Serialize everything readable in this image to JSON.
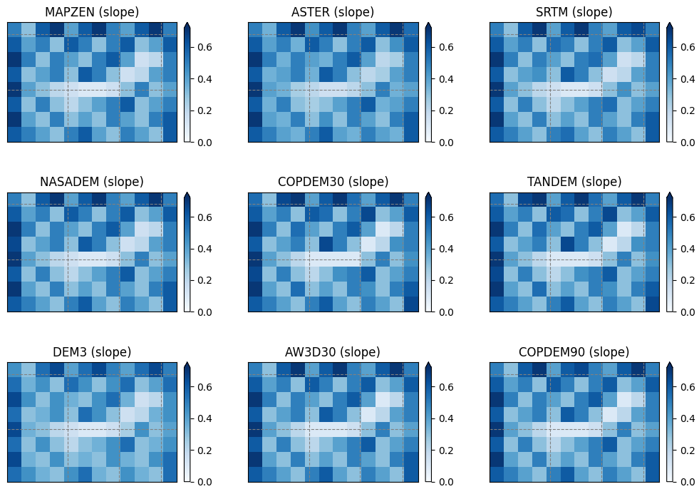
{
  "chart_data": [
    {
      "type": "heatmap",
      "title": "MAPZEN (slope)",
      "color": "Blues",
      "grid": true,
      "tick_labels": false,
      "xlim": [
        0,
        12
      ],
      "ylim": [
        0,
        8
      ],
      "xticks": [
        4.3,
        7.9,
        10.9
      ],
      "yticks": [
        3.5,
        7.2
      ],
      "colorbar_range": [
        0,
        0.72
      ],
      "colorbar_ticks": [
        {
          "value": 0,
          "label": "0.0"
        },
        0.2,
        0.4,
        0.6
      ],
      "cells": [
        [
          0.5,
          0.3,
          0.6,
          0.7,
          0.4,
          0.6,
          0.7,
          0.5,
          0.4,
          0.6,
          0.7,
          0.5
        ],
        [
          0.6,
          0.4,
          0.5,
          0.3,
          0.6,
          0.5,
          0.3,
          0.5,
          0.6,
          0.3,
          0.4,
          0.6
        ],
        [
          0.7,
          0.5,
          0.3,
          0.5,
          0.4,
          0.3,
          0.5,
          0.6,
          0.4,
          0.15,
          0.2,
          0.5
        ],
        [
          0.6,
          0.3,
          0.4,
          0.5,
          0.3,
          0.6,
          0.5,
          0.3,
          0.15,
          0.2,
          0.4,
          0.5
        ],
        [
          0.7,
          0.4,
          0.3,
          0.2,
          0.15,
          0.1,
          0.1,
          0.15,
          0.3,
          0.5,
          0.3,
          0.4
        ],
        [
          0.6,
          0.3,
          0.5,
          0.3,
          0.2,
          0.3,
          0.4,
          0.5,
          0.6,
          0.3,
          0.4,
          0.5
        ],
        [
          0.7,
          0.4,
          0.3,
          0.5,
          0.3,
          0.4,
          0.3,
          0.5,
          0.4,
          0.3,
          0.5,
          0.6
        ],
        [
          0.6,
          0.5,
          0.4,
          0.3,
          0.5,
          0.6,
          0.4,
          0.3,
          0.5,
          0.4,
          0.3,
          0.6
        ]
      ]
    },
    {
      "type": "heatmap",
      "title": "ASTER (slope)",
      "color": "Blues",
      "grid": true,
      "tick_labels": false,
      "xlim": [
        0,
        12
      ],
      "ylim": [
        0,
        8
      ],
      "xticks": [
        4.3,
        7.9,
        10.9
      ],
      "yticks": [
        3.5,
        7.2
      ],
      "colorbar_range": [
        0,
        0.72
      ],
      "colorbar_ticks": [
        {
          "value": 0,
          "label": "0.0"
        },
        0.2,
        0.4,
        0.6
      ],
      "cells": [
        [
          0.5,
          0.35,
          0.6,
          0.7,
          0.45,
          0.6,
          0.7,
          0.5,
          0.4,
          0.6,
          0.7,
          0.55
        ],
        [
          0.6,
          0.4,
          0.5,
          0.35,
          0.6,
          0.5,
          0.3,
          0.5,
          0.6,
          0.3,
          0.45,
          0.6
        ],
        [
          0.7,
          0.5,
          0.35,
          0.5,
          0.4,
          0.35,
          0.5,
          0.6,
          0.4,
          0.2,
          0.25,
          0.5
        ],
        [
          0.6,
          0.35,
          0.4,
          0.5,
          0.35,
          0.6,
          0.5,
          0.3,
          0.2,
          0.25,
          0.4,
          0.5
        ],
        [
          0.7,
          0.4,
          0.35,
          0.25,
          0.2,
          0.15,
          0.15,
          0.2,
          0.3,
          0.5,
          0.35,
          0.4
        ],
        [
          0.6,
          0.35,
          0.5,
          0.3,
          0.25,
          0.3,
          0.4,
          0.5,
          0.6,
          0.35,
          0.4,
          0.5
        ],
        [
          0.7,
          0.4,
          0.35,
          0.5,
          0.3,
          0.45,
          0.3,
          0.5,
          0.4,
          0.3,
          0.5,
          0.6
        ],
        [
          0.6,
          0.5,
          0.4,
          0.35,
          0.5,
          0.6,
          0.4,
          0.35,
          0.5,
          0.4,
          0.35,
          0.6
        ]
      ]
    },
    {
      "type": "heatmap",
      "title": "SRTM (slope)",
      "color": "Blues",
      "grid": true,
      "tick_labels": false,
      "xlim": [
        0,
        12
      ],
      "ylim": [
        0,
        8
      ],
      "xticks": [
        4.3,
        7.9,
        10.9
      ],
      "yticks": [
        3.5,
        7.2
      ],
      "colorbar_range": [
        0,
        0.72
      ],
      "colorbar_ticks": [
        {
          "value": 0,
          "label": "0.0"
        },
        0.2,
        0.4,
        0.6
      ],
      "cells": [
        [
          0.5,
          0.3,
          0.6,
          0.7,
          0.4,
          0.6,
          0.7,
          0.5,
          0.4,
          0.6,
          0.65,
          0.5
        ],
        [
          0.6,
          0.4,
          0.5,
          0.3,
          0.55,
          0.5,
          0.3,
          0.5,
          0.6,
          0.3,
          0.4,
          0.6
        ],
        [
          0.7,
          0.5,
          0.3,
          0.5,
          0.4,
          0.3,
          0.5,
          0.55,
          0.4,
          0.15,
          0.2,
          0.5
        ],
        [
          0.6,
          0.3,
          0.4,
          0.45,
          0.3,
          0.6,
          0.5,
          0.3,
          0.15,
          0.2,
          0.4,
          0.5
        ],
        [
          0.7,
          0.4,
          0.3,
          0.2,
          0.15,
          0.1,
          0.1,
          0.15,
          0.3,
          0.45,
          0.3,
          0.4
        ],
        [
          0.6,
          0.3,
          0.5,
          0.3,
          0.2,
          0.3,
          0.4,
          0.5,
          0.55,
          0.3,
          0.4,
          0.5
        ],
        [
          0.7,
          0.4,
          0.3,
          0.5,
          0.3,
          0.4,
          0.3,
          0.5,
          0.4,
          0.3,
          0.5,
          0.6
        ],
        [
          0.6,
          0.5,
          0.4,
          0.3,
          0.5,
          0.55,
          0.4,
          0.3,
          0.5,
          0.4,
          0.3,
          0.6
        ]
      ]
    },
    {
      "type": "heatmap",
      "title": "NASADEM (slope)",
      "color": "Blues",
      "grid": true,
      "tick_labels": false,
      "xlim": [
        0,
        12
      ],
      "ylim": [
        0,
        8
      ],
      "xticks": [
        4.3,
        7.9,
        10.9
      ],
      "yticks": [
        3.5,
        7.2
      ],
      "colorbar_range": [
        0,
        0.72
      ],
      "colorbar_ticks": [
        {
          "value": 0,
          "label": "0.0"
        },
        0.2,
        0.4,
        0.6
      ],
      "cells": [
        [
          0.5,
          0.3,
          0.6,
          0.7,
          0.4,
          0.6,
          0.7,
          0.5,
          0.4,
          0.6,
          0.7,
          0.5
        ],
        [
          0.6,
          0.4,
          0.5,
          0.3,
          0.6,
          0.5,
          0.3,
          0.5,
          0.6,
          0.3,
          0.4,
          0.6
        ],
        [
          0.7,
          0.5,
          0.3,
          0.5,
          0.4,
          0.3,
          0.5,
          0.6,
          0.4,
          0.15,
          0.2,
          0.5
        ],
        [
          0.65,
          0.3,
          0.4,
          0.5,
          0.3,
          0.6,
          0.5,
          0.3,
          0.15,
          0.2,
          0.4,
          0.5
        ],
        [
          0.7,
          0.4,
          0.3,
          0.2,
          0.15,
          0.1,
          0.1,
          0.15,
          0.3,
          0.5,
          0.3,
          0.4
        ],
        [
          0.6,
          0.3,
          0.5,
          0.3,
          0.2,
          0.3,
          0.4,
          0.5,
          0.6,
          0.3,
          0.4,
          0.5
        ],
        [
          0.7,
          0.4,
          0.3,
          0.5,
          0.3,
          0.4,
          0.3,
          0.5,
          0.4,
          0.3,
          0.5,
          0.6
        ],
        [
          0.6,
          0.5,
          0.4,
          0.3,
          0.5,
          0.6,
          0.4,
          0.3,
          0.5,
          0.4,
          0.3,
          0.6
        ]
      ]
    },
    {
      "type": "heatmap",
      "title": "COPDEM30 (slope)",
      "color": "Blues",
      "grid": true,
      "tick_labels": false,
      "xlim": [
        0,
        12
      ],
      "ylim": [
        0,
        8
      ],
      "xticks": [
        4.3,
        7.9,
        10.9
      ],
      "yticks": [
        3.5,
        7.2
      ],
      "colorbar_range": [
        0,
        0.72
      ],
      "colorbar_ticks": [
        {
          "value": 0,
          "label": "0.0"
        },
        0.2,
        0.4,
        0.6
      ],
      "cells": [
        [
          0.55,
          0.3,
          0.65,
          0.7,
          0.4,
          0.6,
          0.7,
          0.55,
          0.4,
          0.6,
          0.7,
          0.5
        ],
        [
          0.6,
          0.4,
          0.5,
          0.3,
          0.6,
          0.55,
          0.3,
          0.5,
          0.65,
          0.3,
          0.4,
          0.6
        ],
        [
          0.7,
          0.5,
          0.3,
          0.55,
          0.4,
          0.3,
          0.5,
          0.6,
          0.4,
          0.1,
          0.2,
          0.5
        ],
        [
          0.6,
          0.3,
          0.4,
          0.5,
          0.3,
          0.65,
          0.5,
          0.3,
          0.1,
          0.2,
          0.45,
          0.5
        ],
        [
          0.7,
          0.4,
          0.3,
          0.2,
          0.1,
          0.1,
          0.1,
          0.1,
          0.3,
          0.5,
          0.3,
          0.45
        ],
        [
          0.65,
          0.3,
          0.5,
          0.3,
          0.2,
          0.3,
          0.45,
          0.5,
          0.6,
          0.3,
          0.4,
          0.5
        ],
        [
          0.7,
          0.4,
          0.3,
          0.55,
          0.3,
          0.4,
          0.3,
          0.5,
          0.45,
          0.3,
          0.5,
          0.6
        ],
        [
          0.6,
          0.5,
          0.4,
          0.3,
          0.5,
          0.6,
          0.4,
          0.3,
          0.5,
          0.4,
          0.3,
          0.65
        ]
      ]
    },
    {
      "type": "heatmap",
      "title": "TANDEM (slope)",
      "color": "Blues",
      "grid": true,
      "tick_labels": false,
      "xlim": [
        0,
        12
      ],
      "ylim": [
        0,
        8
      ],
      "xticks": [
        4.3,
        7.9,
        10.9
      ],
      "yticks": [
        3.5,
        7.2
      ],
      "colorbar_range": [
        0,
        0.72
      ],
      "colorbar_ticks": [
        {
          "value": 0,
          "label": "0.0"
        },
        0.2,
        0.4,
        0.6
      ],
      "cells": [
        [
          0.55,
          0.3,
          0.65,
          0.7,
          0.4,
          0.6,
          0.7,
          0.55,
          0.4,
          0.6,
          0.7,
          0.5
        ],
        [
          0.6,
          0.4,
          0.5,
          0.3,
          0.6,
          0.55,
          0.3,
          0.5,
          0.65,
          0.3,
          0.4,
          0.6
        ],
        [
          0.7,
          0.5,
          0.3,
          0.55,
          0.4,
          0.3,
          0.5,
          0.6,
          0.4,
          0.1,
          0.2,
          0.5
        ],
        [
          0.6,
          0.3,
          0.4,
          0.5,
          0.3,
          0.65,
          0.5,
          0.3,
          0.1,
          0.2,
          0.45,
          0.5
        ],
        [
          0.7,
          0.4,
          0.3,
          0.2,
          0.1,
          0.1,
          0.1,
          0.15,
          0.3,
          0.5,
          0.3,
          0.45
        ],
        [
          0.65,
          0.3,
          0.5,
          0.3,
          0.2,
          0.3,
          0.45,
          0.5,
          0.6,
          0.3,
          0.4,
          0.5
        ],
        [
          0.7,
          0.4,
          0.3,
          0.55,
          0.3,
          0.4,
          0.3,
          0.5,
          0.45,
          0.3,
          0.5,
          0.6
        ],
        [
          0.6,
          0.5,
          0.4,
          0.3,
          0.5,
          0.6,
          0.4,
          0.3,
          0.5,
          0.4,
          0.3,
          0.65
        ]
      ]
    },
    {
      "type": "heatmap",
      "title": "DEM3 (slope)",
      "color": "Blues",
      "grid": true,
      "tick_labels": false,
      "xlim": [
        0,
        12
      ],
      "ylim": [
        0,
        8
      ],
      "xticks": [
        4.3,
        7.9,
        10.9
      ],
      "yticks": [
        3.5,
        7.2
      ],
      "colorbar_range": [
        0,
        0.72
      ],
      "colorbar_ticks": [
        {
          "value": 0,
          "label": "0.0"
        },
        0.2,
        0.4,
        0.6
      ],
      "cells": [
        [
          0.45,
          0.3,
          0.55,
          0.65,
          0.4,
          0.55,
          0.65,
          0.5,
          0.4,
          0.55,
          0.65,
          0.5
        ],
        [
          0.55,
          0.35,
          0.45,
          0.3,
          0.55,
          0.45,
          0.3,
          0.45,
          0.55,
          0.3,
          0.4,
          0.55
        ],
        [
          0.65,
          0.45,
          0.3,
          0.45,
          0.35,
          0.3,
          0.45,
          0.55,
          0.35,
          0.15,
          0.2,
          0.45
        ],
        [
          0.55,
          0.3,
          0.35,
          0.45,
          0.3,
          0.55,
          0.45,
          0.3,
          0.15,
          0.2,
          0.35,
          0.45
        ],
        [
          0.65,
          0.35,
          0.3,
          0.2,
          0.15,
          0.1,
          0.1,
          0.15,
          0.25,
          0.45,
          0.3,
          0.4
        ],
        [
          0.55,
          0.3,
          0.45,
          0.3,
          0.2,
          0.3,
          0.35,
          0.45,
          0.55,
          0.3,
          0.35,
          0.45
        ],
        [
          0.65,
          0.35,
          0.3,
          0.45,
          0.3,
          0.35,
          0.3,
          0.45,
          0.35,
          0.3,
          0.45,
          0.55
        ],
        [
          0.55,
          0.45,
          0.35,
          0.3,
          0.45,
          0.55,
          0.35,
          0.3,
          0.45,
          0.35,
          0.3,
          0.55
        ]
      ]
    },
    {
      "type": "heatmap",
      "title": "AW3D30 (slope)",
      "color": "Blues",
      "grid": true,
      "tick_labels": false,
      "xlim": [
        0,
        12
      ],
      "ylim": [
        0,
        8
      ],
      "xticks": [
        4.3,
        7.9,
        10.9
      ],
      "yticks": [
        3.5,
        7.2
      ],
      "colorbar_range": [
        0,
        0.72
      ],
      "colorbar_ticks": [
        {
          "value": 0,
          "label": "0.0"
        },
        0.2,
        0.4,
        0.6
      ],
      "cells": [
        [
          0.5,
          0.3,
          0.6,
          0.7,
          0.4,
          0.6,
          0.7,
          0.5,
          0.4,
          0.6,
          0.7,
          0.5
        ],
        [
          0.6,
          0.4,
          0.5,
          0.3,
          0.6,
          0.5,
          0.3,
          0.5,
          0.6,
          0.3,
          0.4,
          0.6
        ],
        [
          0.7,
          0.5,
          0.3,
          0.5,
          0.4,
          0.3,
          0.5,
          0.6,
          0.4,
          0.1,
          0.2,
          0.5
        ],
        [
          0.6,
          0.3,
          0.4,
          0.5,
          0.3,
          0.6,
          0.5,
          0.3,
          0.1,
          0.2,
          0.4,
          0.5
        ],
        [
          0.7,
          0.4,
          0.3,
          0.2,
          0.1,
          0.1,
          0.1,
          0.15,
          0.3,
          0.5,
          0.3,
          0.4
        ],
        [
          0.6,
          0.3,
          0.5,
          0.3,
          0.2,
          0.3,
          0.4,
          0.5,
          0.6,
          0.3,
          0.4,
          0.5
        ],
        [
          0.7,
          0.4,
          0.3,
          0.5,
          0.3,
          0.4,
          0.3,
          0.5,
          0.4,
          0.3,
          0.5,
          0.6
        ],
        [
          0.6,
          0.5,
          0.4,
          0.3,
          0.5,
          0.6,
          0.4,
          0.3,
          0.5,
          0.4,
          0.3,
          0.6
        ]
      ]
    },
    {
      "type": "heatmap",
      "title": "COPDEM90 (slope)",
      "color": "Blues",
      "grid": true,
      "tick_labels": false,
      "xlim": [
        0,
        12
      ],
      "ylim": [
        0,
        8
      ],
      "xticks": [
        4.3,
        7.9,
        10.9
      ],
      "yticks": [
        3.5,
        7.2
      ],
      "colorbar_range": [
        0,
        0.72
      ],
      "colorbar_ticks": [
        {
          "value": 0,
          "label": "0.0"
        },
        0.2,
        0.4,
        0.6
      ],
      "cells": [
        [
          0.5,
          0.3,
          0.6,
          0.7,
          0.4,
          0.6,
          0.65,
          0.5,
          0.4,
          0.6,
          0.7,
          0.5
        ],
        [
          0.6,
          0.4,
          0.5,
          0.3,
          0.6,
          0.5,
          0.3,
          0.5,
          0.6,
          0.3,
          0.4,
          0.6
        ],
        [
          0.7,
          0.5,
          0.3,
          0.5,
          0.4,
          0.3,
          0.5,
          0.6,
          0.4,
          0.1,
          0.2,
          0.5
        ],
        [
          0.6,
          0.3,
          0.4,
          0.5,
          0.3,
          0.6,
          0.5,
          0.3,
          0.1,
          0.2,
          0.4,
          0.5
        ],
        [
          0.7,
          0.4,
          0.3,
          0.2,
          0.1,
          0.1,
          0.1,
          0.15,
          0.3,
          0.5,
          0.3,
          0.4
        ],
        [
          0.6,
          0.3,
          0.5,
          0.3,
          0.2,
          0.3,
          0.4,
          0.5,
          0.6,
          0.3,
          0.4,
          0.5
        ],
        [
          0.7,
          0.4,
          0.3,
          0.5,
          0.3,
          0.4,
          0.3,
          0.5,
          0.4,
          0.3,
          0.5,
          0.6
        ],
        [
          0.6,
          0.5,
          0.4,
          0.3,
          0.5,
          0.6,
          0.4,
          0.3,
          0.5,
          0.4,
          0.3,
          0.6
        ]
      ]
    }
  ]
}
